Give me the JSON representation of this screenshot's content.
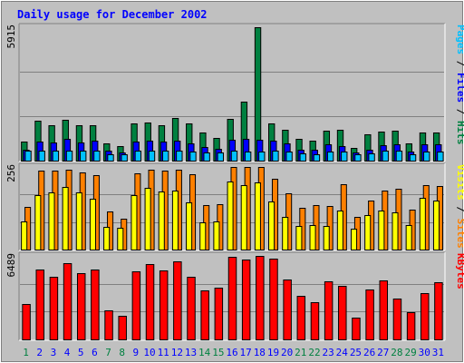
{
  "title": "Daily usage for December 2002",
  "colors": {
    "background": "#C0C0C0",
    "title": "#0000FF",
    "hits": "#008040",
    "files": "#0000FF",
    "pages": "#00C0FF",
    "visits": "#FFFF00",
    "sites": "#FF8000",
    "kbytes": "#FF0000",
    "weekday_label": "#0000FF",
    "weekend_label": "#008040",
    "axis_text": "#000000"
  },
  "chart_data": [
    {
      "type": "bar",
      "panel": "top",
      "ymax_label": "5915",
      "ylim": [
        0,
        5915
      ],
      "x": [
        1,
        2,
        3,
        4,
        5,
        6,
        7,
        8,
        9,
        10,
        11,
        12,
        13,
        14,
        15,
        16,
        17,
        18,
        19,
        20,
        21,
        22,
        23,
        24,
        25,
        26,
        27,
        28,
        29,
        30,
        31
      ],
      "legend": [
        {
          "key": "hits",
          "text": "Hits"
        },
        {
          "key": "files",
          "text": "Files"
        },
        {
          "key": "pages",
          "text": "Pages"
        }
      ],
      "series": [
        {
          "name": "Hits",
          "key": "hits",
          "values": [
            860,
            1770,
            1550,
            1800,
            1550,
            1550,
            750,
            650,
            1630,
            1710,
            1560,
            1890,
            1630,
            1230,
            1010,
            1860,
            2620,
            5915,
            1660,
            1350,
            970,
            870,
            1310,
            1350,
            570,
            1160,
            1300,
            1320,
            760,
            1260,
            1260
          ]
        },
        {
          "name": "Files",
          "key": "files",
          "values": [
            500,
            860,
            810,
            950,
            800,
            890,
            430,
            360,
            860,
            890,
            860,
            890,
            780,
            600,
            540,
            940,
            960,
            930,
            880,
            750,
            480,
            470,
            730,
            660,
            350,
            500,
            700,
            740,
            390,
            710,
            710
          ]
        },
        {
          "name": "Pages",
          "key": "pages",
          "values": [
            430,
            430,
            450,
            430,
            450,
            430,
            300,
            300,
            430,
            450,
            430,
            450,
            400,
            350,
            350,
            450,
            400,
            400,
            450,
            400,
            310,
            300,
            400,
            400,
            270,
            330,
            430,
            430,
            300,
            400,
            400
          ]
        }
      ]
    },
    {
      "type": "bar",
      "panel": "middle",
      "ymax_label": "256",
      "ylim": [
        0,
        256
      ],
      "x": [
        1,
        2,
        3,
        4,
        5,
        6,
        7,
        8,
        9,
        10,
        11,
        12,
        13,
        14,
        15,
        16,
        17,
        18,
        19,
        20,
        21,
        22,
        23,
        24,
        25,
        26,
        27,
        28,
        29,
        30,
        31
      ],
      "legend": [
        {
          "key": "sites",
          "text": "Sites"
        },
        {
          "key": "visits",
          "text": "Visits"
        }
      ],
      "series": [
        {
          "name": "Sites",
          "key": "sites",
          "values": [
            133,
            244,
            246,
            248,
            238,
            230,
            118,
            96,
            235,
            248,
            244,
            248,
            234,
            139,
            140,
            256,
            256,
            256,
            220,
            174,
            130,
            138,
            136,
            202,
            101,
            153,
            183,
            188,
            124,
            199,
            198
          ]
        },
        {
          "name": "Visits",
          "key": "visits",
          "values": [
            88,
            168,
            176,
            193,
            176,
            158,
            70,
            68,
            170,
            192,
            180,
            183,
            145,
            85,
            88,
            212,
            200,
            208,
            150,
            102,
            72,
            77,
            74,
            122,
            64,
            106,
            121,
            115,
            75,
            160,
            152
          ]
        }
      ]
    },
    {
      "type": "bar",
      "panel": "bottom",
      "ymax_label": "6489",
      "ylim": [
        0,
        6489
      ],
      "x": [
        1,
        2,
        3,
        4,
        5,
        6,
        7,
        8,
        9,
        10,
        11,
        12,
        13,
        14,
        15,
        16,
        17,
        18,
        19,
        20,
        21,
        22,
        23,
        24,
        25,
        26,
        27,
        28,
        29,
        30,
        31
      ],
      "legend": [
        {
          "key": "kbytes",
          "text": "KBytes"
        }
      ],
      "series": [
        {
          "name": "KBytes",
          "key": "kbytes",
          "values": [
            2770,
            5440,
            4860,
            5930,
            5120,
            5430,
            2230,
            1860,
            5260,
            5830,
            5380,
            6040,
            4870,
            3810,
            4000,
            6400,
            6200,
            6489,
            6310,
            4650,
            3410,
            2900,
            4540,
            4150,
            1660,
            3900,
            4580,
            3200,
            2130,
            3600,
            4470
          ]
        }
      ]
    }
  ],
  "days": [
    "1",
    "2",
    "3",
    "4",
    "5",
    "6",
    "7",
    "8",
    "9",
    "10",
    "11",
    "12",
    "13",
    "14",
    "15",
    "16",
    "17",
    "18",
    "19",
    "20",
    "21",
    "22",
    "23",
    "24",
    "25",
    "26",
    "27",
    "28",
    "29",
    "30",
    "31"
  ],
  "weekend_days": [
    1,
    7,
    8,
    14,
    15,
    21,
    22,
    28,
    29
  ]
}
